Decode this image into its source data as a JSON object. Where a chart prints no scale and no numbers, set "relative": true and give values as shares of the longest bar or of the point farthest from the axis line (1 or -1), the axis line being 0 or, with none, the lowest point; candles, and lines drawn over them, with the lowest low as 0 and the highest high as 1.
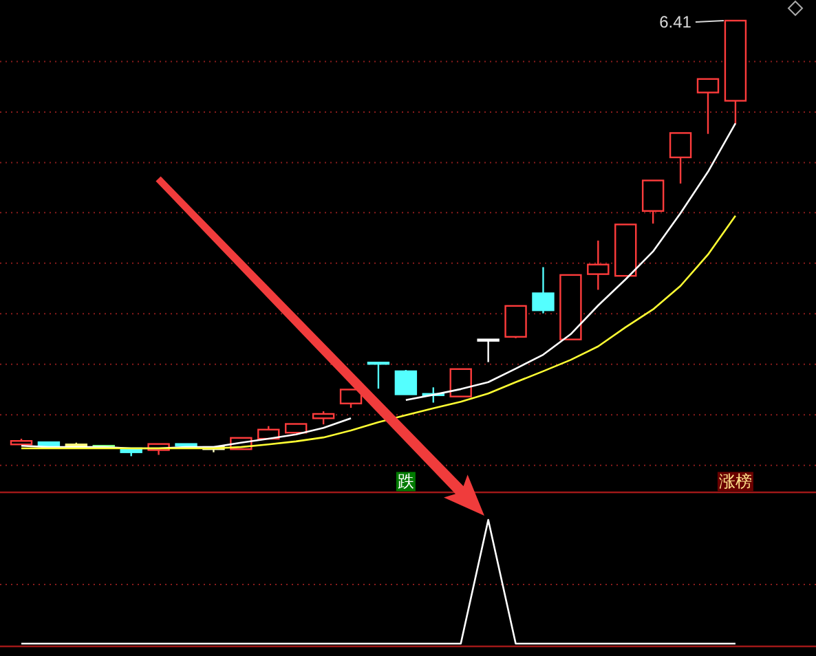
{
  "chart_data": [
    {
      "type": "candlestick",
      "relative": true,
      "categories": [
        null,
        null,
        null,
        null,
        null,
        null,
        null,
        null,
        null,
        null,
        null,
        null,
        null,
        null,
        null,
        null,
        null,
        null,
        null,
        null,
        null,
        null,
        null,
        null,
        null,
        null,
        null
      ],
      "ohlc": [
        [
          0.027,
          0.04,
          0.027,
          0.035
        ],
        [
          0.032,
          0.032,
          0.024,
          0.024
        ],
        [
          0.027,
          0.031,
          0.024,
          0.027
        ],
        [
          0.024,
          0.024,
          0.019,
          0.019
        ],
        [
          0.018,
          0.018,
          0,
          0.009
        ],
        [
          0.014,
          0.028,
          0.003,
          0.028
        ],
        [
          0.028,
          0.028,
          0.024,
          0.024
        ],
        [
          0.021,
          0.021,
          0.009,
          0.016
        ],
        [
          0.016,
          0.042,
          0.016,
          0.042
        ],
        [
          0.04,
          0.069,
          0.04,
          0.061
        ],
        [
          0.054,
          0.074,
          0.054,
          0.074
        ],
        [
          0.087,
          0.103,
          0.073,
          0.097
        ],
        [
          0.121,
          0.153,
          0.111,
          0.153
        ],
        [
          0.215,
          0.215,
          0.155,
          0.212
        ],
        [
          0.195,
          0.198,
          0.142,
          0.142
        ],
        [
          0.143,
          0.158,
          0.123,
          0.142
        ],
        [
          0.137,
          0.2,
          0.137,
          0.2
        ],
        [
          0.268,
          0.268,
          0.216,
          0.268
        ],
        [
          0.274,
          0.345,
          0.271,
          0.345
        ],
        [
          0.374,
          0.434,
          0.328,
          0.335
        ],
        [
          0.268,
          0.416,
          0.268,
          0.416
        ],
        [
          0.418,
          0.495,
          0.382,
          0.44
        ],
        [
          0.414,
          0.532,
          0.414,
          0.532
        ],
        [
          0.563,
          0.633,
          0.534,
          0.633
        ],
        [
          0.686,
          0.742,
          0.626,
          0.742
        ],
        [
          0.835,
          0.866,
          0.74,
          0.866
        ],
        [
          0.816,
          1,
          0.763,
          1
        ]
      ],
      "colors": [
        "#ff3c3c",
        "#54ffff",
        "#ffff80",
        "#80ff80",
        "#54ffff",
        "#ff3c3c",
        "#54ffff",
        "#ffffc0",
        "#ff3c3c",
        "#ff3c3c",
        "#ff3c3c",
        "#ff3c3c",
        "#ff3c3c",
        "#54ffff",
        "#54ffff",
        "#54ffff",
        "#ff3c3c",
        "#ffffff",
        "#ff3c3c",
        "#54ffff",
        "#ff3c3c",
        "#ff3c3c",
        "#ff3c3c",
        "#ff3c3c",
        "#ff3c3c",
        "#ff3c3c",
        "#ff3c3c"
      ],
      "series": [
        {
          "type": "line",
          "color": "#ffffff",
          "values": [
            0.024,
            0.021,
            0.021,
            0.021,
            0.018,
            0.018,
            0.021,
            0.021,
            0.031,
            0.04,
            0.05,
            0.065,
            0.087,
            null,
            0.129,
            0.141,
            0.154,
            0.17,
            0.201,
            0.233,
            0.28,
            0.346,
            0.406,
            0.47,
            0.558,
            0.653,
            0.764
          ]
        },
        {
          "type": "line",
          "color": "#ffff33",
          "values": [
            0.018,
            0.018,
            0.018,
            0.018,
            0.018,
            0.018,
            0.018,
            0.018,
            0.021,
            0.027,
            0.034,
            0.043,
            0.059,
            0.078,
            0.094,
            0.11,
            0.125,
            0.144,
            0.17,
            0.195,
            0.221,
            0.252,
            0.296,
            0.337,
            0.391,
            0.463,
            0.552
          ]
        }
      ],
      "ref_lines": [
        {
          "axis": "y",
          "value": -0.021,
          "color": "#8a1c1c",
          "line_style": "dotted"
        },
        {
          "axis": "y",
          "value": 0.095,
          "color": "#8a1c1c",
          "line_style": "dotted"
        },
        {
          "axis": "y",
          "value": 0.211,
          "color": "#8a1c1c",
          "line_style": "dotted"
        },
        {
          "axis": "y",
          "value": 0.327,
          "color": "#8a1c1c",
          "line_style": "dotted"
        },
        {
          "axis": "y",
          "value": 0.443,
          "color": "#8a1c1c",
          "line_style": "dotted"
        },
        {
          "axis": "y",
          "value": 0.559,
          "color": "#8a1c1c",
          "line_style": "dotted"
        },
        {
          "axis": "y",
          "value": 0.674,
          "color": "#8a1c1c",
          "line_style": "dotted"
        },
        {
          "axis": "y",
          "value": 0.79,
          "color": "#8a1c1c",
          "line_style": "dotted"
        },
        {
          "axis": "y",
          "value": 0.906,
          "color": "#8a1c1c",
          "line_style": "dotted"
        }
      ],
      "annotations": [
        "6.41",
        "跌",
        "涨榜"
      ]
    },
    {
      "type": "line",
      "relative": true,
      "categories": [
        null,
        null,
        null,
        null,
        null,
        null,
        null,
        null,
        null,
        null,
        null,
        null,
        null,
        null,
        null,
        null,
        null,
        null,
        null,
        null,
        null,
        null,
        null,
        null,
        null,
        null,
        null
      ],
      "ref_lines": [
        {
          "axis": "y",
          "value": 0.478,
          "color": "#8a1c1c",
          "line_style": "dotted"
        }
      ],
      "series": [
        {
          "color": "#ffffff",
          "values": [
            0,
            0,
            0,
            0,
            0,
            0,
            0,
            0,
            0,
            0,
            0,
            0,
            0,
            0,
            0,
            0,
            0,
            1,
            0,
            0,
            0,
            0,
            0,
            0,
            0,
            0,
            0
          ]
        }
      ]
    }
  ]
}
